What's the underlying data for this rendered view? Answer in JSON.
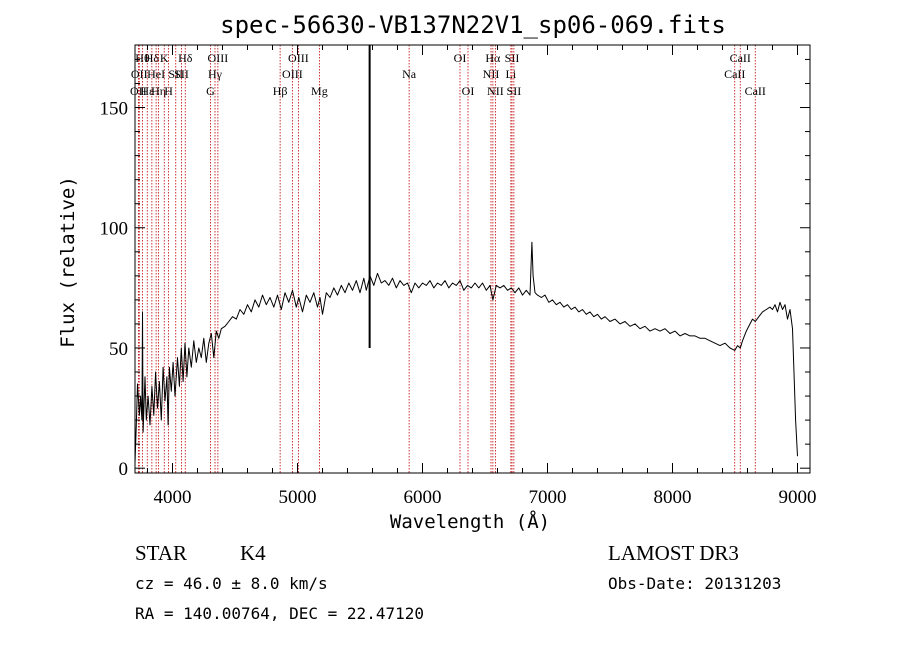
{
  "chart_data": {
    "type": "line",
    "title": "spec-56630-VB137N22V1_sp06-069.fits",
    "xlabel": "Wavelength (Å)",
    "ylabel": "Flux (relative)",
    "xlim": [
      3700,
      9100
    ],
    "ylim": [
      -2,
      176
    ],
    "xticks": [
      4000,
      5000,
      6000,
      7000,
      8000,
      9000
    ],
    "yticks": [
      0,
      50,
      100,
      150
    ],
    "series": [
      {
        "name": "flux",
        "color": "#000000",
        "points": [
          [
            3700,
            2
          ],
          [
            3710,
            18
          ],
          [
            3720,
            35
          ],
          [
            3735,
            22
          ],
          [
            3745,
            30
          ],
          [
            3755,
            20
          ],
          [
            3760,
            65
          ],
          [
            3765,
            15
          ],
          [
            3780,
            38
          ],
          [
            3790,
            20
          ],
          [
            3805,
            30
          ],
          [
            3820,
            18
          ],
          [
            3835,
            34
          ],
          [
            3850,
            22
          ],
          [
            3865,
            40
          ],
          [
            3880,
            25
          ],
          [
            3895,
            36
          ],
          [
            3910,
            20
          ],
          [
            3925,
            42
          ],
          [
            3940,
            28
          ],
          [
            3955,
            38
          ],
          [
            3965,
            18
          ],
          [
            3975,
            42
          ],
          [
            3990,
            32
          ],
          [
            4005,
            44
          ],
          [
            4020,
            30
          ],
          [
            4040,
            46
          ],
          [
            4055,
            34
          ],
          [
            4070,
            50
          ],
          [
            4085,
            36
          ],
          [
            4100,
            52
          ],
          [
            4115,
            38
          ],
          [
            4130,
            50
          ],
          [
            4150,
            42
          ],
          [
            4170,
            53
          ],
          [
            4190,
            44
          ],
          [
            4210,
            50
          ],
          [
            4230,
            46
          ],
          [
            4250,
            54
          ],
          [
            4270,
            44
          ],
          [
            4290,
            52
          ],
          [
            4310,
            56
          ],
          [
            4330,
            46
          ],
          [
            4350,
            57
          ],
          [
            4370,
            54
          ],
          [
            4390,
            58
          ],
          [
            4420,
            59
          ],
          [
            4450,
            61
          ],
          [
            4480,
            63
          ],
          [
            4510,
            62
          ],
          [
            4540,
            66
          ],
          [
            4570,
            64
          ],
          [
            4600,
            68
          ],
          [
            4630,
            65
          ],
          [
            4660,
            70
          ],
          [
            4690,
            67
          ],
          [
            4720,
            72
          ],
          [
            4750,
            68
          ],
          [
            4780,
            71
          ],
          [
            4810,
            67
          ],
          [
            4840,
            72
          ],
          [
            4870,
            66
          ],
          [
            4900,
            73
          ],
          [
            4930,
            69
          ],
          [
            4960,
            74
          ],
          [
            4990,
            67
          ],
          [
            5010,
            71
          ],
          [
            5040,
            65
          ],
          [
            5070,
            72
          ],
          [
            5100,
            69
          ],
          [
            5130,
            73
          ],
          [
            5160,
            67
          ],
          [
            5180,
            71
          ],
          [
            5200,
            64
          ],
          [
            5230,
            73
          ],
          [
            5260,
            71
          ],
          [
            5290,
            75
          ],
          [
            5320,
            72
          ],
          [
            5350,
            76
          ],
          [
            5380,
            73
          ],
          [
            5410,
            77
          ],
          [
            5440,
            74
          ],
          [
            5470,
            78
          ],
          [
            5500,
            73
          ],
          [
            5530,
            79
          ],
          [
            5550,
            74
          ],
          [
            5580,
            80
          ],
          [
            5610,
            76
          ],
          [
            5640,
            81
          ],
          [
            5670,
            77
          ],
          [
            5700,
            78
          ],
          [
            5730,
            76
          ],
          [
            5760,
            79
          ],
          [
            5790,
            75
          ],
          [
            5820,
            78
          ],
          [
            5850,
            76
          ],
          [
            5880,
            77
          ],
          [
            5910,
            73
          ],
          [
            5940,
            77
          ],
          [
            5970,
            75
          ],
          [
            6000,
            77
          ],
          [
            6030,
            76
          ],
          [
            6060,
            78
          ],
          [
            6090,
            75
          ],
          [
            6120,
            77
          ],
          [
            6150,
            76
          ],
          [
            6180,
            78
          ],
          [
            6210,
            75
          ],
          [
            6240,
            77
          ],
          [
            6270,
            76
          ],
          [
            6300,
            78
          ],
          [
            6330,
            74
          ],
          [
            6360,
            76
          ],
          [
            6390,
            75
          ],
          [
            6420,
            77
          ],
          [
            6450,
            75
          ],
          [
            6480,
            77
          ],
          [
            6510,
            74
          ],
          [
            6540,
            76
          ],
          [
            6563,
            70
          ],
          [
            6590,
            76
          ],
          [
            6620,
            75
          ],
          [
            6650,
            76
          ],
          [
            6680,
            74
          ],
          [
            6710,
            75
          ],
          [
            6740,
            73
          ],
          [
            6770,
            75
          ],
          [
            6800,
            72
          ],
          [
            6830,
            74
          ],
          [
            6860,
            72
          ],
          [
            6875,
            94
          ],
          [
            6885,
            80
          ],
          [
            6900,
            73
          ],
          [
            6920,
            72
          ],
          [
            6950,
            71
          ],
          [
            6980,
            72
          ],
          [
            7010,
            69
          ],
          [
            7040,
            70
          ],
          [
            7070,
            68
          ],
          [
            7100,
            69
          ],
          [
            7130,
            67
          ],
          [
            7160,
            68
          ],
          [
            7190,
            66
          ],
          [
            7220,
            67
          ],
          [
            7250,
            65
          ],
          [
            7280,
            66
          ],
          [
            7310,
            64
          ],
          [
            7340,
            65
          ],
          [
            7370,
            63
          ],
          [
            7400,
            64
          ],
          [
            7430,
            62
          ],
          [
            7460,
            63
          ],
          [
            7500,
            61
          ],
          [
            7540,
            62
          ],
          [
            7580,
            60
          ],
          [
            7620,
            61
          ],
          [
            7660,
            59
          ],
          [
            7700,
            60
          ],
          [
            7740,
            58
          ],
          [
            7780,
            59
          ],
          [
            7820,
            57
          ],
          [
            7860,
            58
          ],
          [
            7900,
            57
          ],
          [
            7940,
            58
          ],
          [
            7980,
            56
          ],
          [
            8020,
            57
          ],
          [
            8060,
            55
          ],
          [
            8100,
            56
          ],
          [
            8140,
            55
          ],
          [
            8180,
            55
          ],
          [
            8220,
            54
          ],
          [
            8260,
            54
          ],
          [
            8300,
            53
          ],
          [
            8340,
            52
          ],
          [
            8380,
            51
          ],
          [
            8420,
            52
          ],
          [
            8460,
            50
          ],
          [
            8498,
            49
          ],
          [
            8520,
            51
          ],
          [
            8542,
            50
          ],
          [
            8560,
            53
          ],
          [
            8590,
            57
          ],
          [
            8620,
            60
          ],
          [
            8640,
            62
          ],
          [
            8662,
            61
          ],
          [
            8690,
            63
          ],
          [
            8720,
            65
          ],
          [
            8750,
            66
          ],
          [
            8780,
            67
          ],
          [
            8800,
            66
          ],
          [
            8820,
            68
          ],
          [
            8840,
            65
          ],
          [
            8860,
            69
          ],
          [
            8880,
            66
          ],
          [
            8900,
            68
          ],
          [
            8920,
            62
          ],
          [
            8940,
            66
          ],
          [
            8960,
            58
          ],
          [
            8985,
            20
          ],
          [
            9000,
            5
          ]
        ]
      }
    ],
    "spike": {
      "x": 5577,
      "y_top": 176,
      "y_bottom": 50
    },
    "line_markers": [
      {
        "x": 3727,
        "row": 3,
        "label": "OII"
      },
      {
        "x": 3734,
        "row": 2,
        "label": "OII"
      },
      {
        "x": 3760,
        "row": 1,
        "label": "Hθ"
      },
      {
        "x": 3798,
        "row": 3,
        "label": "Hε"
      },
      {
        "x": 3835,
        "row": 1,
        "label": "Hδ"
      },
      {
        "x": 3869,
        "row": 2,
        "label": "HeI"
      },
      {
        "x": 3889,
        "row": 3,
        "label": "Hη"
      },
      {
        "x": 3934,
        "row": 1,
        "label": "K"
      },
      {
        "x": 3969,
        "row": 3,
        "label": "H"
      },
      {
        "x": 4026,
        "row": 2,
        "label": "SII"
      },
      {
        "x": 4072,
        "row": 2,
        "label": "SII"
      },
      {
        "x": 4102,
        "row": 1,
        "label": "Hδ"
      },
      {
        "x": 4304,
        "row": 3,
        "label": "G"
      },
      {
        "x": 4340,
        "row": 2,
        "label": "Hγ"
      },
      {
        "x": 4363,
        "row": 1,
        "label": "OIII"
      },
      {
        "x": 4861,
        "row": 3,
        "label": "Hβ"
      },
      {
        "x": 4959,
        "row": 2,
        "label": "OIII"
      },
      {
        "x": 5007,
        "row": 1,
        "label": "OIII"
      },
      {
        "x": 5175,
        "row": 3,
        "label": "Mg"
      },
      {
        "x": 5893,
        "row": 2,
        "label": "Na"
      },
      {
        "x": 6300,
        "row": 1,
        "label": "OI"
      },
      {
        "x": 6364,
        "row": 3,
        "label": "OI"
      },
      {
        "x": 6548,
        "row": 2,
        "label": "NII"
      },
      {
        "x": 6563,
        "row": 1,
        "label": "Hα"
      },
      {
        "x": 6583,
        "row": 3,
        "label": "NII"
      },
      {
        "x": 6707,
        "row": 2,
        "label": "Li"
      },
      {
        "x": 6716,
        "row": 1,
        "label": "SII"
      },
      {
        "x": 6731,
        "row": 3,
        "label": "SII"
      },
      {
        "x": 8498,
        "row": 2,
        "label": "CaII"
      },
      {
        "x": 8542,
        "row": 1,
        "label": "CaII"
      },
      {
        "x": 8662,
        "row": 3,
        "label": "CaII"
      }
    ]
  },
  "info": {
    "object_class": "STAR",
    "subclass": "K4",
    "survey": "LAMOST DR3",
    "redshift": "cz = 46.0 ± 8.0 km/s",
    "obs_date": "Obs-Date: 20131203",
    "coords": "RA = 140.00764, DEC =  22.47120"
  },
  "colors": {
    "line_marker": "#c00000",
    "spectrum": "#000000",
    "axes": "#000000",
    "background": "#ffffff"
  }
}
